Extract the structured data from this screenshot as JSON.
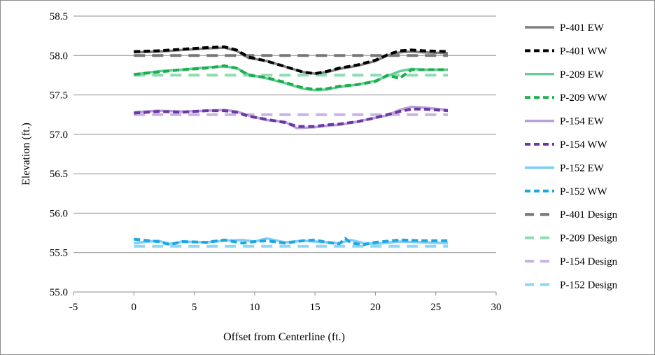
{
  "chart_data": {
    "type": "line",
    "xlabel": "Offset from Centerline (ft.)",
    "ylabel": "Elevation (ft.)",
    "xlim": [
      -5,
      30
    ],
    "ylim": [
      55.0,
      58.5
    ],
    "x_ticks": [
      "-5",
      "0",
      "5",
      "10",
      "15",
      "20",
      "25",
      "30"
    ],
    "y_ticks": [
      "55.0",
      "55.5",
      "56.0",
      "56.5",
      "57.0",
      "57.5",
      "58.0",
      "58.5"
    ],
    "grid": "horizontal major gridlines",
    "legend_position": "right",
    "series": [
      {
        "name": "P-401 EW",
        "color": "#808080",
        "dash": "solid",
        "x": [
          0,
          2,
          4,
          6,
          7.5,
          8.5,
          9.5,
          11,
          12.5,
          14,
          15,
          16,
          17,
          18.5,
          20,
          21,
          22,
          23,
          24,
          26
        ],
        "y": [
          58.04,
          58.05,
          58.07,
          58.09,
          58.1,
          58.06,
          57.97,
          57.93,
          57.86,
          57.79,
          57.77,
          57.79,
          57.83,
          57.87,
          57.93,
          58.0,
          58.04,
          58.05,
          58.04,
          58.03
        ]
      },
      {
        "name": "P-401 WW",
        "color": "#000000",
        "dash": "dashed",
        "x": [
          0,
          2,
          4,
          6,
          7.5,
          8.5,
          9.5,
          11,
          12.5,
          14,
          15,
          16,
          17,
          18.5,
          20,
          21,
          22,
          23,
          24,
          26
        ],
        "y": [
          58.05,
          58.06,
          58.08,
          58.1,
          58.11,
          58.07,
          57.98,
          57.93,
          57.86,
          57.79,
          57.77,
          57.8,
          57.84,
          57.88,
          57.94,
          58.01,
          58.06,
          58.07,
          58.06,
          58.05
        ]
      },
      {
        "name": "P-209 EW",
        "color": "#66cc99",
        "dash": "solid",
        "x": [
          0,
          2,
          4,
          6,
          7.5,
          8.5,
          9.5,
          11,
          12.5,
          14,
          15,
          16,
          17,
          18.5,
          20,
          21,
          22,
          23,
          24,
          26
        ],
        "y": [
          57.76,
          57.8,
          57.82,
          57.85,
          57.86,
          57.84,
          57.76,
          57.71,
          57.65,
          57.58,
          57.56,
          57.57,
          57.6,
          57.63,
          57.68,
          57.74,
          57.8,
          57.83,
          57.82,
          57.82
        ]
      },
      {
        "name": "P-209 WW",
        "color": "#1aaf4a",
        "dash": "dashed",
        "x": [
          0,
          2,
          4,
          6,
          7.5,
          8.5,
          9.5,
          11,
          12.5,
          14,
          15,
          16,
          17,
          18.5,
          20,
          21,
          22,
          23,
          24,
          26
        ],
        "y": [
          57.76,
          57.79,
          57.82,
          57.84,
          57.87,
          57.84,
          57.75,
          57.72,
          57.66,
          57.59,
          57.57,
          57.58,
          57.61,
          57.63,
          57.67,
          57.75,
          57.71,
          57.82,
          57.82,
          57.82
        ]
      },
      {
        "name": "P-154 EW",
        "color": "#b9a0d8",
        "dash": "solid",
        "x": [
          0,
          2,
          4,
          6,
          7.5,
          8.5,
          9.5,
          11,
          12.5,
          13.5,
          15,
          16,
          17,
          18.5,
          20,
          21,
          22,
          23,
          24,
          26
        ],
        "y": [
          57.28,
          57.3,
          57.29,
          57.3,
          57.31,
          57.29,
          57.24,
          57.18,
          57.16,
          57.08,
          57.09,
          57.11,
          57.12,
          57.16,
          57.21,
          57.24,
          57.31,
          57.35,
          57.34,
          57.31
        ]
      },
      {
        "name": "P-154 WW",
        "color": "#6a36a8",
        "dash": "dashed",
        "x": [
          0,
          2,
          4,
          6,
          7.5,
          8.5,
          9.5,
          11,
          12.5,
          13.5,
          15,
          16,
          17,
          18.5,
          20,
          21,
          22,
          23,
          24,
          26
        ],
        "y": [
          57.27,
          57.29,
          57.28,
          57.3,
          57.3,
          57.28,
          57.23,
          57.19,
          57.15,
          57.1,
          57.1,
          57.12,
          57.13,
          57.16,
          57.21,
          57.25,
          57.29,
          57.32,
          57.32,
          57.3
        ]
      },
      {
        "name": "P-152 EW",
        "color": "#7fcff5",
        "dash": "solid",
        "x": [
          0,
          2,
          3,
          4,
          6,
          7.5,
          9,
          10,
          11,
          12.5,
          14,
          15,
          16,
          17,
          18,
          19,
          20,
          22,
          24,
          26
        ],
        "y": [
          55.62,
          55.65,
          55.61,
          55.64,
          55.63,
          55.65,
          55.66,
          55.64,
          55.68,
          55.63,
          55.65,
          55.64,
          55.63,
          55.62,
          55.66,
          55.62,
          55.61,
          55.64,
          55.63,
          55.62
        ]
      },
      {
        "name": "P-152 WW",
        "color": "#1aa7e8",
        "dash": "dashed",
        "x": [
          0,
          2,
          3,
          4,
          6,
          7.5,
          9,
          10,
          11,
          12.5,
          14,
          15,
          16,
          17,
          17.5,
          18,
          19,
          20,
          22,
          24,
          26
        ],
        "y": [
          55.67,
          55.64,
          55.6,
          55.64,
          55.63,
          55.66,
          55.62,
          55.64,
          55.65,
          55.62,
          55.65,
          55.66,
          55.63,
          55.61,
          55.68,
          55.62,
          55.6,
          55.63,
          55.66,
          55.65,
          55.65
        ]
      },
      {
        "name": "P-401 Design",
        "color": "#777777",
        "dash": "longdash",
        "x": [
          0,
          26
        ],
        "y": [
          58.0,
          58.0
        ]
      },
      {
        "name": "P-209 Design",
        "color": "#8fdcb4",
        "dash": "longdash",
        "x": [
          0,
          26
        ],
        "y": [
          57.75,
          57.75
        ]
      },
      {
        "name": "P-154 Design",
        "color": "#c9b3e3",
        "dash": "longdash",
        "x": [
          0,
          26
        ],
        "y": [
          57.25,
          57.25
        ]
      },
      {
        "name": "P-152 Design",
        "color": "#8fd8f5",
        "dash": "longdash",
        "x": [
          0,
          26
        ],
        "y": [
          55.58,
          55.58
        ]
      }
    ]
  }
}
